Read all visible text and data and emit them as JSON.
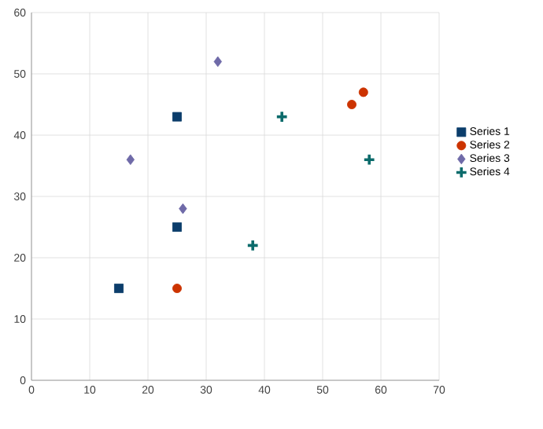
{
  "chart_data": {
    "type": "scatter",
    "xlim": [
      0,
      70
    ],
    "ylim": [
      0,
      60
    ],
    "xticks": [
      0,
      10,
      20,
      30,
      40,
      50,
      60,
      70
    ],
    "yticks": [
      0,
      10,
      20,
      30,
      40,
      50,
      60
    ],
    "grid": true,
    "legend": "right",
    "series": [
      {
        "name": "Series 1",
        "color": "#0b3d6b",
        "marker": "square",
        "x": [
          15,
          25,
          25
        ],
        "values": [
          15,
          25,
          43
        ]
      },
      {
        "name": "Series 2",
        "color": "#cc3300",
        "marker": "circle",
        "x": [
          25,
          55,
          57
        ],
        "values": [
          15,
          45,
          47
        ]
      },
      {
        "name": "Series 3",
        "color": "#6f6aa8",
        "marker": "diamond",
        "x": [
          17,
          26,
          32
        ],
        "values": [
          36,
          28,
          52
        ]
      },
      {
        "name": "Series 4",
        "color": "#0b6b6b",
        "marker": "cross",
        "x": [
          38,
          43,
          58
        ],
        "values": [
          22,
          43,
          36
        ]
      }
    ]
  }
}
